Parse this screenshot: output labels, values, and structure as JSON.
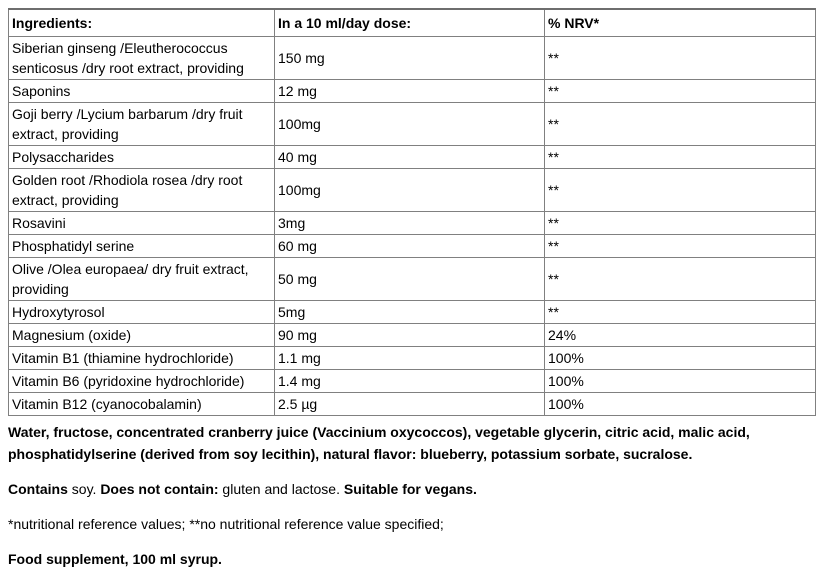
{
  "colors": {
    "border": "#808080",
    "border_top": "#6e6e6e",
    "text": "#000000",
    "background": "#ffffff"
  },
  "table": {
    "headers": [
      "Ingredients:",
      "In a 10 ml/day dose:",
      "% NRV*"
    ],
    "rows": [
      {
        "ingredient": "Siberian ginseng /Eleutherococcus senticosus /dry root extract, providing",
        "dose": "150 mg",
        "nrv": "**"
      },
      {
        "ingredient": "Saponins",
        "dose": "12 mg",
        "nrv": "**"
      },
      {
        "ingredient": "Goji berry /Lycium barbarum /dry fruit extract, providing",
        "dose": "100mg",
        "nrv": "**"
      },
      {
        "ingredient": "Polysaccharides",
        "dose": "40 mg",
        "nrv": "**"
      },
      {
        "ingredient": "Golden root /Rhodiola rosea /dry root extract, providing",
        "dose": "100mg",
        "nrv": "**"
      },
      {
        "ingredient": "Rosavini",
        "dose": "3mg",
        "nrv": "**"
      },
      {
        "ingredient": "Phosphatidyl serine",
        "dose": "60 mg",
        "nrv": "**"
      },
      {
        "ingredient": "Olive /Olea europaea/ dry fruit extract, providing",
        "dose": "50 mg",
        "nrv": "**"
      },
      {
        "ingredient": "Hydroxytyrosol",
        "dose": "5mg",
        "nrv": "**"
      },
      {
        "ingredient": "Magnesium (oxide)",
        "dose": "90 mg",
        "nrv": "24%"
      },
      {
        "ingredient": "Vitamin B1 (thiamine hydrochloride)",
        "dose": "1.1 mg",
        "nrv": "100%"
      },
      {
        "ingredient": "Vitamin B6 (pyridoxine hydrochloride)",
        "dose": "1.4 mg",
        "nrv": "100%"
      },
      {
        "ingredient": "Vitamin B12 (cyanocobalamin)",
        "dose": "2.5 µg",
        "nrv": "100%"
      }
    ]
  },
  "paragraphs": {
    "other_ingredients": "Water, fructose, concentrated cranberry juice (Vaccinium oxycoccos), vegetable glycerin, citric acid, malic acid, phosphatidylserine (derived from soy lecithin), natural flavor: blueberry, potassium sorbate, sucralose.",
    "allergens": {
      "contains_bold": "Contains",
      "contains_text": " soy. ",
      "not_contain_bold": "Does not contain:",
      "not_contain_text": " gluten and lactose. ",
      "vegan_bold": "Suitable for vegans."
    },
    "footnote": "*nutritional reference values; **no nutritional reference value specified;",
    "supplement": "Food supplement, 100 ml syrup."
  }
}
